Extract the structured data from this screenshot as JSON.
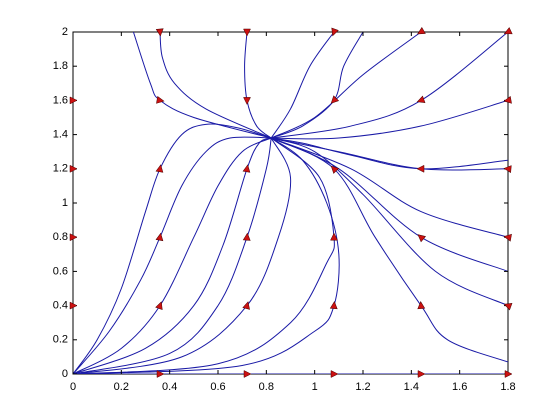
{
  "chart_data": {
    "type": "phase-portrait",
    "color": "#1a1aa6",
    "xlim": [
      0,
      1.8
    ],
    "ylim": [
      0,
      2
    ],
    "xticks": [
      0,
      0.2,
      0.4,
      0.6,
      0.8,
      1,
      1.2,
      1.4,
      1.6,
      1.8
    ],
    "yticks": [
      0,
      0.2,
      0.4,
      0.6,
      0.8,
      1,
      1.2,
      1.4,
      1.6,
      1.8,
      2
    ],
    "series": [
      {
        "x": [
          0,
          0.1,
          0.2,
          0.3,
          0.36,
          0.45,
          0.55,
          0.68,
          0.82
        ],
        "values": [
          0,
          0.2,
          0.5,
          0.95,
          1.2,
          1.4,
          1.46,
          1.44,
          1.38
        ]
      },
      {
        "x": [
          0,
          0.15,
          0.28,
          0.36,
          0.45,
          0.55,
          0.65,
          0.82
        ],
        "values": [
          0,
          0.25,
          0.55,
          0.8,
          1.1,
          1.3,
          1.38,
          1.38
        ]
      },
      {
        "x": [
          0,
          0.2,
          0.36,
          0.5,
          0.6,
          0.7,
          0.82
        ],
        "values": [
          0,
          0.15,
          0.4,
          0.8,
          1.1,
          1.3,
          1.38
        ]
      },
      {
        "x": [
          0,
          0.3,
          0.5,
          0.62,
          0.72,
          0.77,
          0.82
        ],
        "values": [
          0,
          0.15,
          0.4,
          0.75,
          1.2,
          1.35,
          1.38
        ]
      },
      {
        "x": [
          0,
          0.4,
          0.6,
          0.72,
          0.8,
          0.82
        ],
        "values": [
          0,
          0.12,
          0.4,
          0.8,
          1.2,
          1.38
        ]
      },
      {
        "x": [
          0,
          0.45,
          0.72,
          0.85,
          0.9,
          0.82
        ],
        "values": [
          0,
          0.1,
          0.4,
          0.8,
          1.15,
          1.38
        ]
      },
      {
        "x": [
          0,
          0.6,
          0.9,
          1.05,
          1.08,
          1.02,
          0.82
        ],
        "values": [
          0,
          0.06,
          0.3,
          0.65,
          0.8,
          1.15,
          1.38
        ]
      },
      {
        "x": [
          0,
          0.7,
          1.0,
          1.08,
          1.1,
          1.05,
          0.95,
          0.82
        ],
        "values": [
          0,
          0.05,
          0.25,
          0.4,
          0.7,
          1.0,
          1.25,
          1.38
        ]
      },
      {
        "x": [
          0.25,
          0.32,
          0.36,
          0.5,
          0.82
        ],
        "values": [
          2,
          1.7,
          1.6,
          1.5,
          1.38
        ]
      },
      {
        "x": [
          0.36,
          0.37,
          0.42,
          0.55,
          0.82
        ],
        "values": [
          2,
          1.85,
          1.7,
          1.55,
          1.38
        ]
      },
      {
        "x": [
          0.72,
          0.71,
          0.72,
          0.76,
          0.82
        ],
        "values": [
          2,
          1.8,
          1.6,
          1.45,
          1.38
        ]
      },
      {
        "x": [
          1.08,
          0.98,
          0.9,
          0.82
        ],
        "values": [
          2,
          1.8,
          1.55,
          1.38
        ]
      },
      {
        "x": [
          1.2,
          1.12,
          1.08,
          0.95,
          0.82
        ],
        "values": [
          2,
          1.8,
          1.6,
          1.45,
          1.38
        ]
      },
      {
        "x": [
          1.44,
          1.2,
          1.0,
          0.82
        ],
        "values": [
          2,
          1.75,
          1.5,
          1.38
        ]
      },
      {
        "x": [
          1.8,
          1.44,
          1.15,
          0.82
        ],
        "values": [
          2,
          1.6,
          1.45,
          1.38
        ]
      },
      {
        "x": [
          1.8,
          1.44,
          1.1,
          0.82
        ],
        "values": [
          1.6,
          1.45,
          1.38,
          1.38
        ]
      },
      {
        "x": [
          1.8,
          1.44,
          1.15,
          0.95,
          0.82
        ],
        "values": [
          1.25,
          1.2,
          1.28,
          1.35,
          1.38
        ]
      },
      {
        "x": [
          1.8,
          1.44,
          1.1,
          0.82
        ],
        "values": [
          1.2,
          1.2,
          1.3,
          1.38
        ]
      },
      {
        "x": [
          1.8,
          1.44,
          1.15,
          0.82
        ],
        "values": [
          0.8,
          0.95,
          1.2,
          1.38
        ]
      },
      {
        "x": [
          1.8,
          1.44,
          1.1,
          0.82
        ],
        "values": [
          0.6,
          0.8,
          1.2,
          1.38
        ]
      },
      {
        "x": [
          1.8,
          1.5,
          1.2,
          1.0,
          0.82
        ],
        "values": [
          0.4,
          0.6,
          1.05,
          1.3,
          1.38
        ]
      },
      {
        "x": [
          1.8,
          1.55,
          1.44,
          1.25,
          1.08,
          0.82
        ],
        "values": [
          0.07,
          0.2,
          0.4,
          0.8,
          1.2,
          1.38
        ]
      },
      {
        "x": [
          0,
          1.8
        ],
        "values": [
          0,
          0
        ]
      }
    ],
    "arrows": {
      "color": "#cc1111",
      "x": [
        0.36,
        0.72,
        1.08,
        1.44,
        1.8,
        0,
        0.36,
        0.72,
        1.08,
        1.44,
        1.8,
        0,
        0.36,
        0.72,
        1.08,
        1.44,
        1.8,
        0,
        0.36,
        0.72,
        1.08,
        1.44,
        1.8,
        0,
        0.36,
        0.72,
        1.08,
        1.44,
        1.8,
        0.36,
        0.72,
        1.08,
        1.44,
        1.8
      ],
      "y": [
        2,
        2,
        2,
        2,
        2,
        1.6,
        1.6,
        1.6,
        1.6,
        1.6,
        1.6,
        1.2,
        1.2,
        1.2,
        1.2,
        1.2,
        1.2,
        0.8,
        0.8,
        0.8,
        0.8,
        0.8,
        0.8,
        0.4,
        0.4,
        0.4,
        0.4,
        0.4,
        0.4,
        0,
        0,
        0,
        0,
        0
      ],
      "angle": [
        -85,
        -90,
        -110,
        -150,
        -155,
        0,
        -10,
        -90,
        -135,
        -160,
        -170,
        0,
        80,
        80,
        135,
        180,
        175,
        0,
        80,
        85,
        90,
        140,
        170,
        0,
        70,
        75,
        85,
        95,
        160,
        0,
        0,
        0,
        0,
        0
      ]
    }
  }
}
